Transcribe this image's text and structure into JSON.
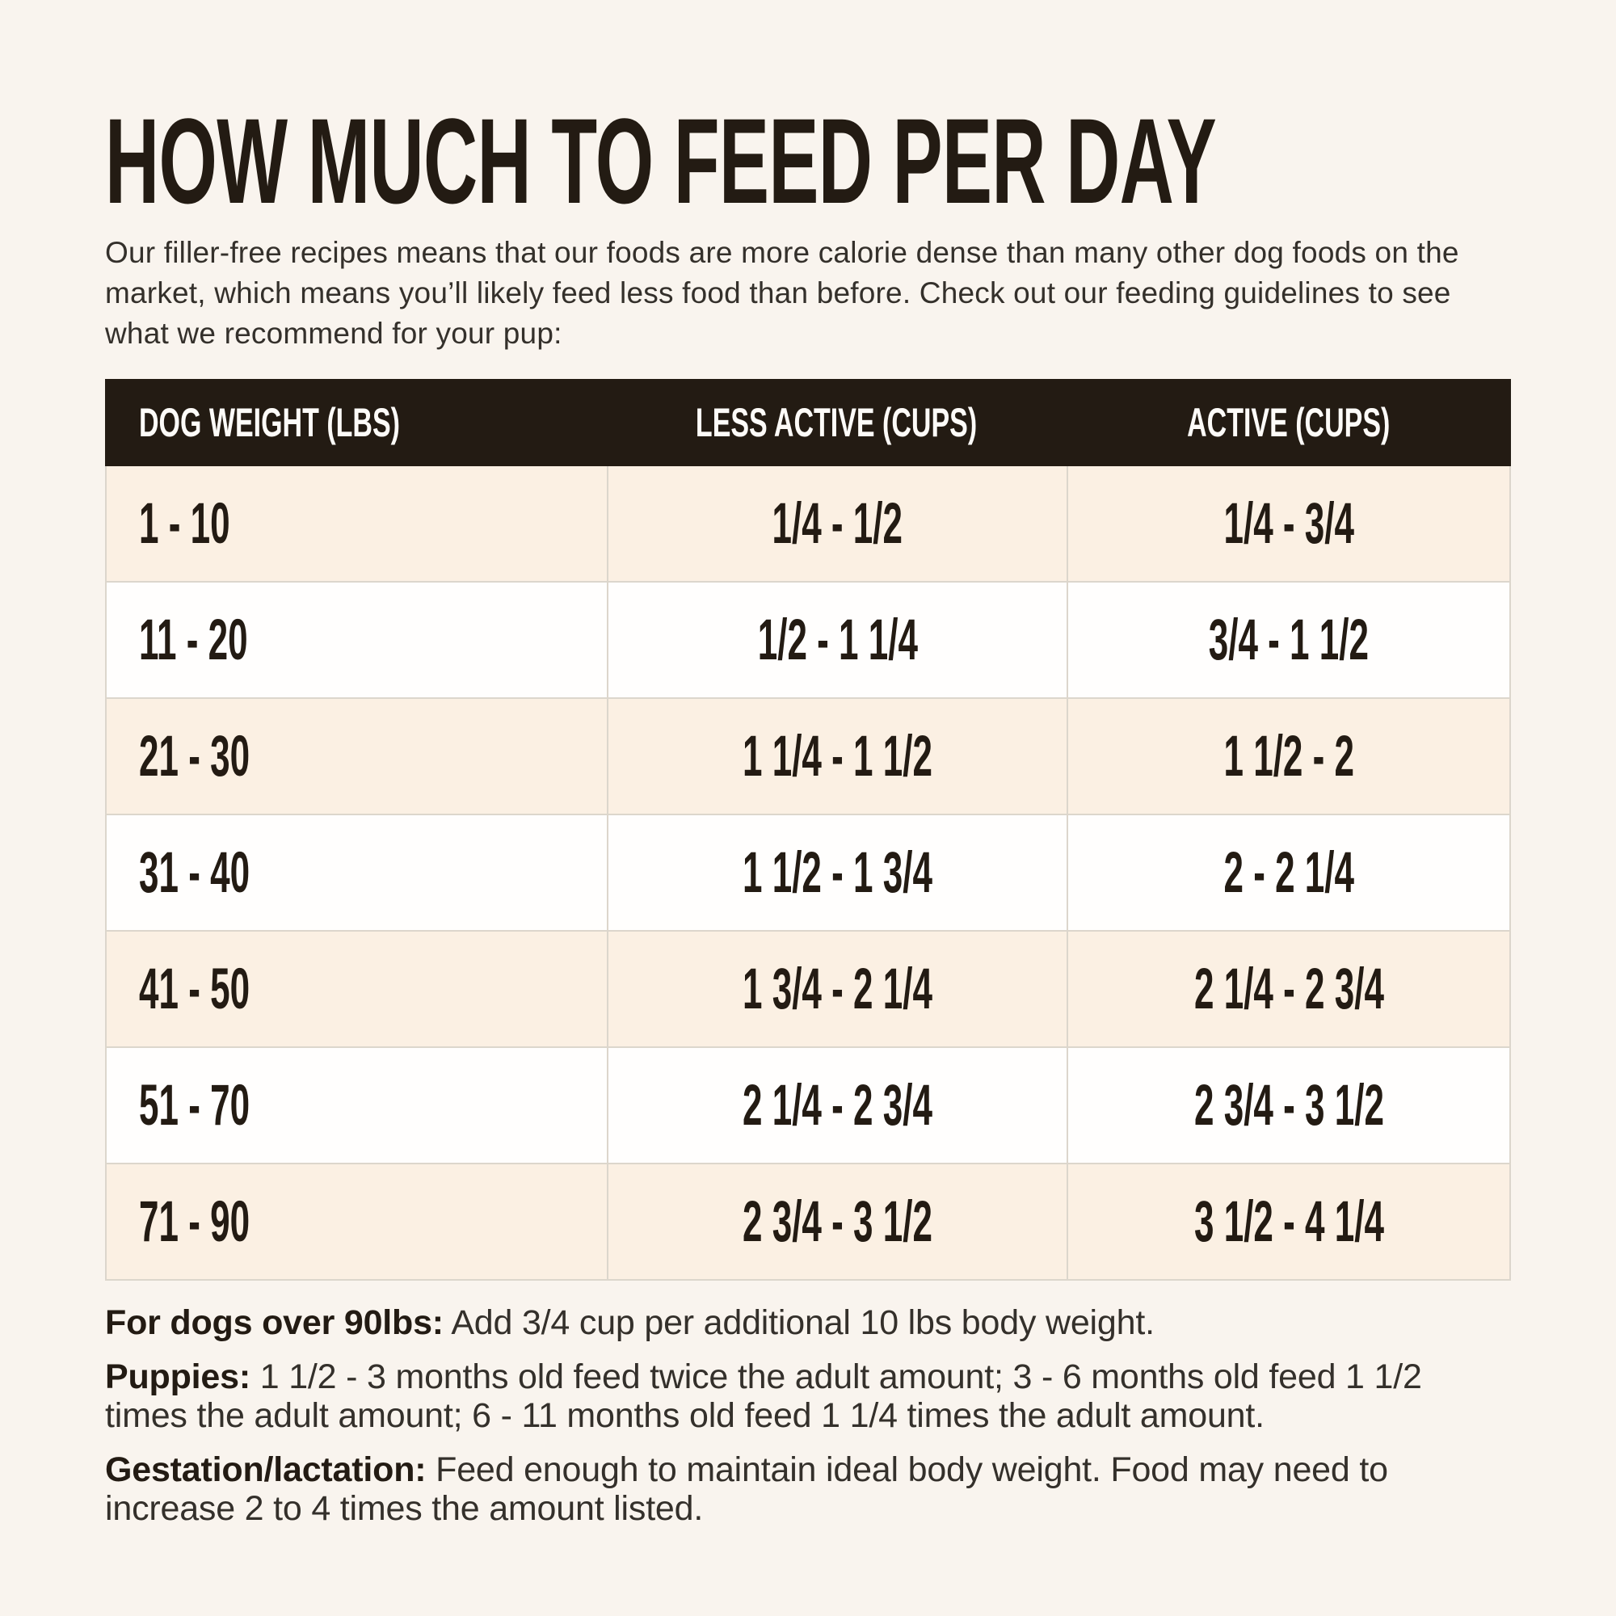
{
  "page": {
    "title": "HOW MUCH TO FEED PER DAY",
    "intro": "Our filler-free recipes means that our foods are more calorie dense than many other dog foods on the market, which means you’ll likely feed less food than before. Check out our feeding guidelines to see what we recommend for your pup:"
  },
  "chart_data": {
    "type": "table",
    "title": "HOW MUCH TO FEED PER DAY",
    "columns": [
      "DOG WEIGHT (LBS)",
      "LESS ACTIVE (CUPS)",
      "ACTIVE (CUPS)"
    ],
    "rows": [
      [
        "1 - 10",
        "1/4 - 1/2",
        "1/4 - 3/4"
      ],
      [
        "11 - 20",
        "1/2 - 1 1/4",
        "3/4 - 1 1/2"
      ],
      [
        "21 - 30",
        "1 1/4 - 1 1/2",
        "1 1/2 - 2"
      ],
      [
        "31 - 40",
        "1 1/2 - 1 3/4",
        "2 - 2 1/4"
      ],
      [
        "41 - 50",
        "1 3/4 - 2 1/4",
        "2 1/4 - 2 3/4"
      ],
      [
        "51 - 70",
        "2 1/4 - 2 3/4",
        "2 3/4 - 3 1/2"
      ],
      [
        "71 - 90",
        "2 3/4 - 3 1/2",
        "3 1/2 - 4 1/4"
      ]
    ],
    "layout": {
      "header_style": "black-bar",
      "row_striping": "peach-white",
      "grid": "light-dividers"
    }
  },
  "notes": [
    {
      "label": "For dogs over 90lbs:",
      "text": "Add 3/4 cup per additional 10 lbs body weight."
    },
    {
      "label": "Puppies:",
      "text": "1 1/2 - 3 months old feed twice the adult amount; 3 - 6 months old feed 1 1/2 times the adult amount; 6 - 11 months old feed 1 1/4 times the adult amount."
    },
    {
      "label": "Gestation/lactation:",
      "text": "Feed enough to maintain ideal body weight. Food may need to increase 2 to 4 times the amount listed."
    }
  ],
  "colors": {
    "page_bg": "#f9f4ee",
    "ink": "#231b13",
    "body_text": "#34302b",
    "header_bg": "#231b13",
    "header_text": "#fdfbf8",
    "row_peach": "#fbf0e3",
    "row_white": "#fffefd",
    "divider": "#dcd6cc"
  }
}
